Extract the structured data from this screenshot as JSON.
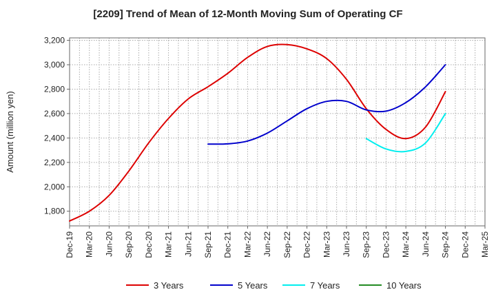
{
  "chart_data": {
    "type": "line",
    "title": "[2209]  Trend of Mean of 12-Month Moving Sum of Operating CF",
    "xlabel": "",
    "ylabel": "Amount (million yen)",
    "ylim": [
      1680,
      3220
    ],
    "yticks": [
      1800,
      2000,
      2200,
      2400,
      2600,
      2800,
      3000,
      3200
    ],
    "ytick_labels": [
      "1,800",
      "2,000",
      "2,200",
      "2,400",
      "2,600",
      "2,800",
      "3,000",
      "3,200"
    ],
    "x_labels": [
      "Dec-19",
      "Mar-20",
      "Jun-20",
      "Sep-20",
      "Dec-20",
      "Mar-21",
      "Jun-21",
      "Sep-21",
      "Dec-21",
      "Mar-22",
      "Jun-22",
      "Sep-22",
      "Dec-22",
      "Mar-23",
      "Jun-23",
      "Sep-23",
      "Dec-23",
      "Mar-24",
      "Jun-24",
      "Sep-24",
      "Dec-24",
      "Mar-25"
    ],
    "grid": true,
    "legend_position": "bottom",
    "series": [
      {
        "name": "3 Years",
        "color": "#dd0000",
        "start_index": 0,
        "values": [
          1720,
          1800,
          1930,
          2130,
          2360,
          2560,
          2720,
          2820,
          2930,
          3060,
          3150,
          3165,
          3130,
          3050,
          2880,
          2640,
          2470,
          2395,
          2490,
          2780
        ]
      },
      {
        "name": "5 Years",
        "color": "#0000cc",
        "start_index": 7,
        "values": [
          2350,
          2352,
          2375,
          2440,
          2540,
          2640,
          2700,
          2700,
          2630,
          2620,
          2690,
          2820,
          3000
        ]
      },
      {
        "name": "7 Years",
        "color": "#00eeee",
        "start_index": 15,
        "values": [
          2395,
          2310,
          2290,
          2360,
          2600
        ]
      },
      {
        "name": "10 Years",
        "color": "#228b22",
        "start_index": 0,
        "values": []
      }
    ]
  }
}
